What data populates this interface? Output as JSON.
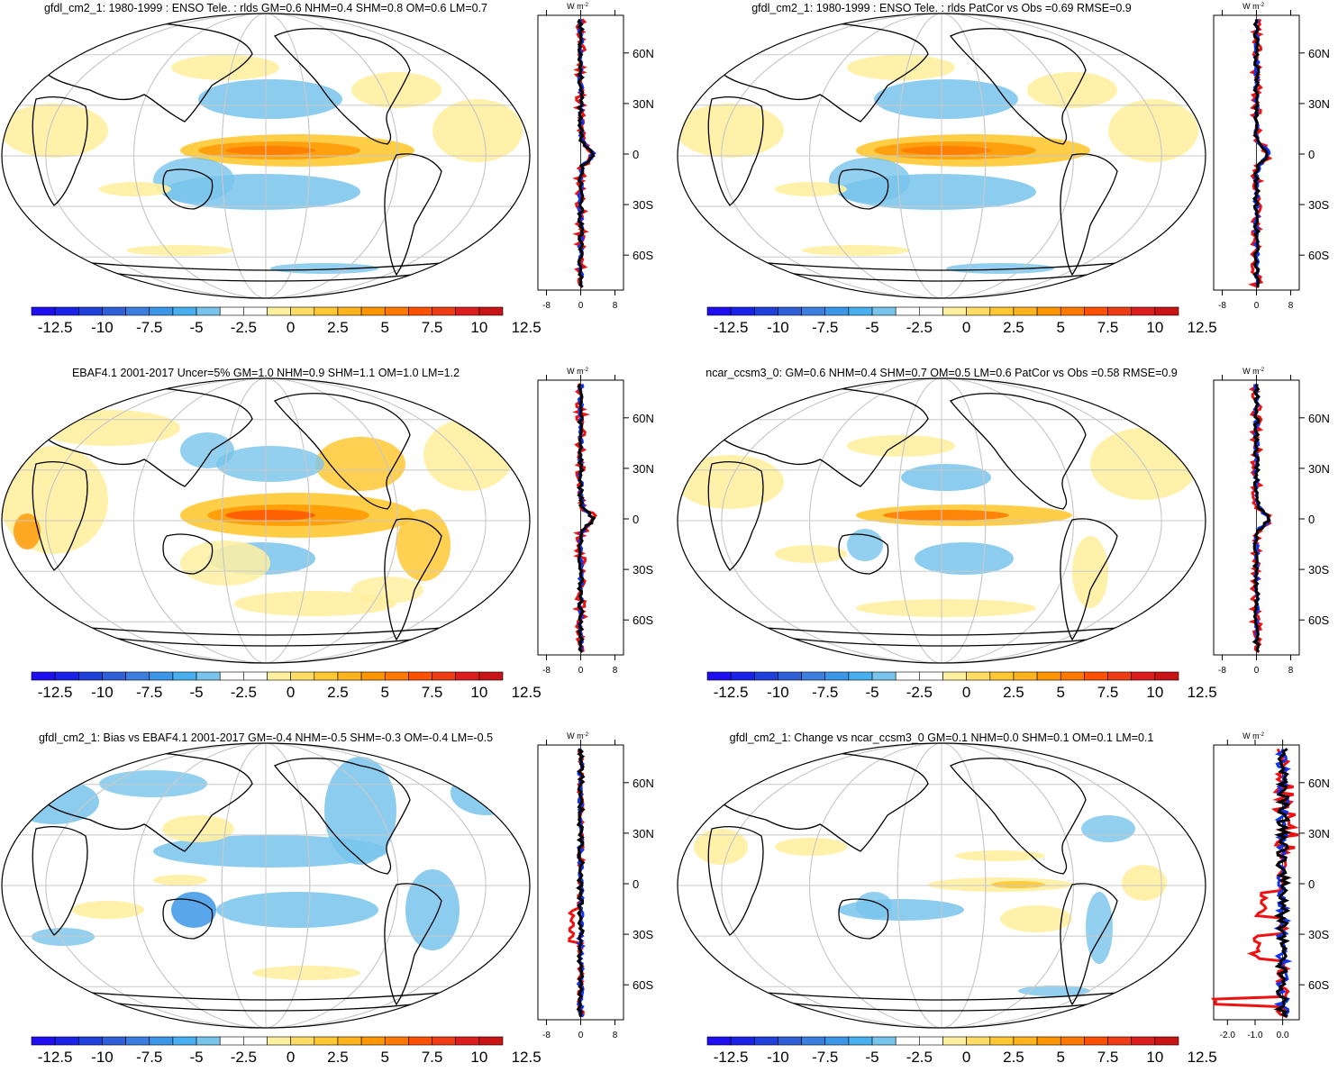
{
  "colorbar": {
    "colors": [
      "#1e0ef0",
      "#1a22e8",
      "#2040dc",
      "#3060d8",
      "#3c7ee0",
      "#3c96e8",
      "#48b0f0",
      "#78c4ec",
      "#ffffff",
      "#ffffff",
      "#fff0a0",
      "#ffdc64",
      "#ffc832",
      "#ffb41e",
      "#ff9600",
      "#ff7800",
      "#ff5000",
      "#f03c14",
      "#dc1e1e",
      "#c81414"
    ],
    "labels": [
      "-12.5",
      "-10",
      "-7.5",
      "-5",
      "-2.5",
      "0",
      "2.5",
      "5",
      "7.5",
      "10",
      "12.5"
    ]
  },
  "profile_axis": {
    "unit": "W m",
    "unit_sup": "-2",
    "lat_labels": [
      "60N",
      "30N",
      "0",
      "30S",
      "60S"
    ],
    "x_labels_default": [
      "-8",
      "0",
      "8"
    ],
    "x_labels_change": [
      "-2.0",
      "-1.0",
      "0.0"
    ]
  },
  "series_colors": {
    "model": "#ee1111",
    "model2": "#1133ee",
    "obs": "#000000"
  },
  "panels": [
    {
      "id": "p1",
      "title": "gfdl_cm2_1: 1980-1999 : ENSO Tele. : rlds GM=0.6 NHM=0.4 SHM=0.8 OM=0.6 LM=0.7",
      "kind": "model",
      "x_labels": "default"
    },
    {
      "id": "p2",
      "title": "gfdl_cm2_1: 1980-1999 : ENSO Tele. : rlds PatCor vs Obs =0.69 RMSE=0.9",
      "kind": "model",
      "x_labels": "default"
    },
    {
      "id": "p3",
      "title": "EBAF4.1 2001-2017 Uncer=5% GM=1.0 NHM=0.9 SHM=1.1 OM=1.0 LM=1.2",
      "kind": "obs",
      "x_labels": "default"
    },
    {
      "id": "p4",
      "title": "ncar_ccsm3_0: GM=0.6 NHM=0.4 SHM=0.7 OM=0.5 LM=0.6 PatCor vs Obs =0.58 RMSE=0.9",
      "kind": "model2",
      "x_labels": "default"
    },
    {
      "id": "p5",
      "title": "gfdl_cm2_1: Bias vs EBAF4.1 2001-2017 GM=-0.4 NHM=-0.5 SHM=-0.3 OM=-0.4 LM=-0.5",
      "kind": "bias",
      "x_labels": "default"
    },
    {
      "id": "p6",
      "title": "gfdl_cm2_1: Change vs ncar_ccsm3_0 GM=0.1 NHM=0.0 SHM=0.1 OM=0.1 LM=0.1",
      "kind": "change",
      "x_labels": "change"
    }
  ]
}
